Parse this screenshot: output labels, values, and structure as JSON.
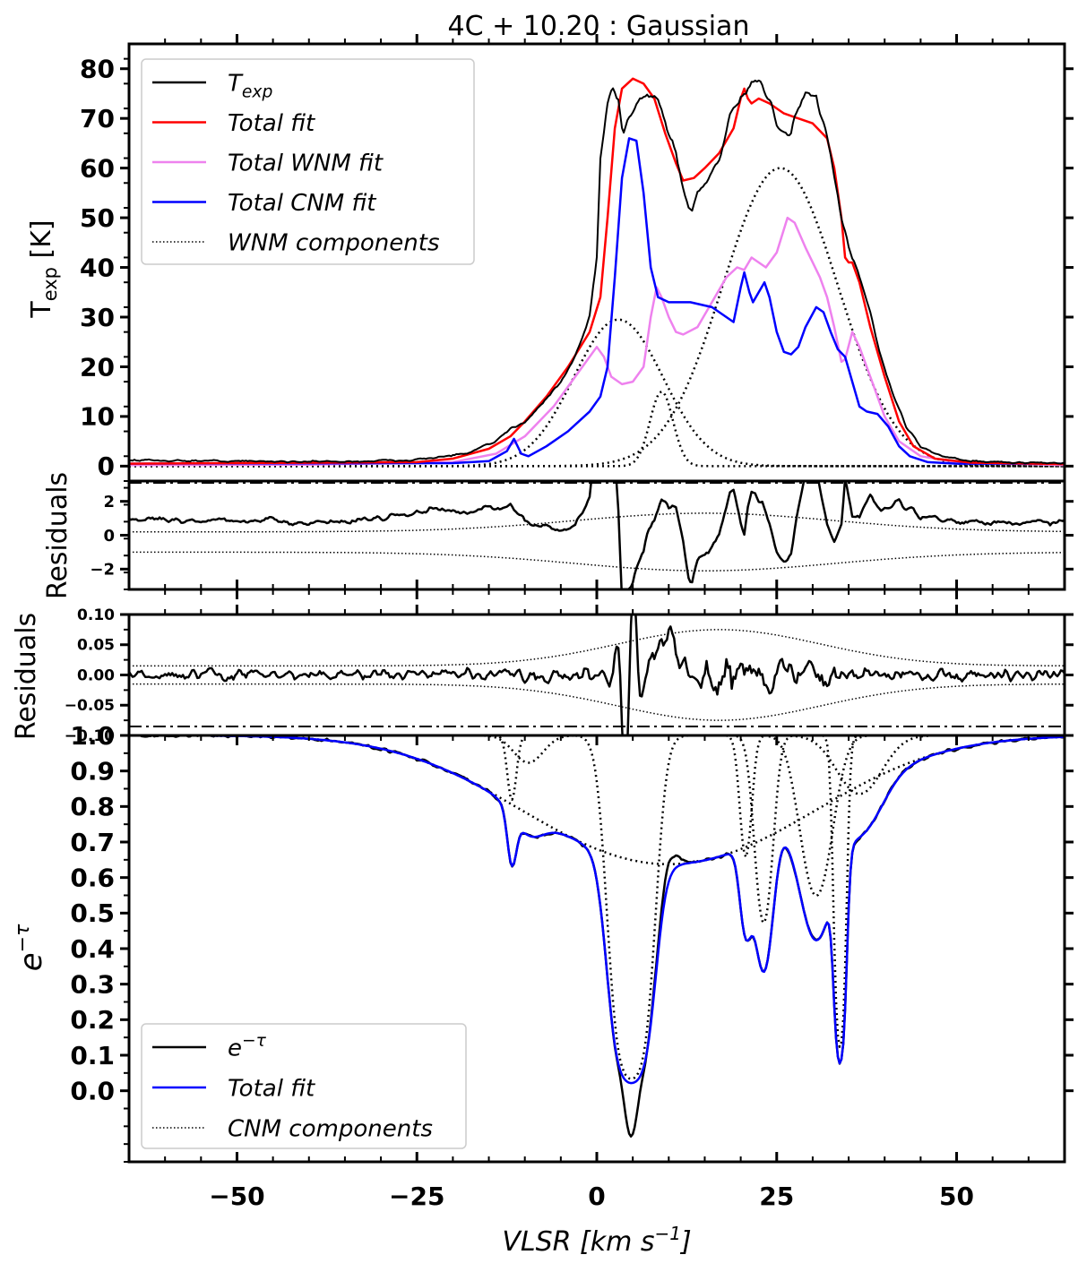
{
  "figure": {
    "title": "4C + 10.20 : Gaussian",
    "x_label": "VLSR [km s",
    "x_label_sup": "−1",
    "x_label_end": "]"
  },
  "chart_data": [
    {
      "name": "emission",
      "type": "line",
      "ylabel": "T",
      "ylabel_sub": "exp",
      "ylabel_unit": " [K]",
      "xlim": [
        -65,
        65
      ],
      "ylim": [
        -3,
        85
      ],
      "x_ticks": [
        -50,
        -25,
        0,
        25,
        50
      ],
      "y_ticks": [
        0,
        10,
        20,
        30,
        40,
        50,
        60,
        70,
        80
      ],
      "legend": {
        "position": "top-left",
        "entries": [
          {
            "label": "T",
            "sub": "exp",
            "color": "#000000",
            "style": "solid"
          },
          {
            "label": "Total fit",
            "color": "#ff0000",
            "style": "solid"
          },
          {
            "label": "Total WNM fit",
            "color": "#ee82ee",
            "style": "solid"
          },
          {
            "label": "Total CNM fit",
            "color": "#0000ff",
            "style": "solid"
          },
          {
            "label": "WNM components",
            "color": "#000000",
            "style": "dotted"
          }
        ]
      },
      "wnm_components": [
        {
          "amp": 29.5,
          "center": 3.0,
          "sigma": 6.2
        },
        {
          "amp": 15.0,
          "center": 9.0,
          "sigma": 1.6
        },
        {
          "amp": 60.0,
          "center": 25.5,
          "sigma": 8.0
        }
      ],
      "total_wnm_fit_points": [
        [
          -65,
          0.2
        ],
        [
          -40,
          0.3
        ],
        [
          -20,
          0.8
        ],
        [
          -14,
          2.5
        ],
        [
          -10,
          6
        ],
        [
          -6,
          12
        ],
        [
          -2,
          20
        ],
        [
          0,
          24
        ],
        [
          1,
          22
        ],
        [
          2,
          18
        ],
        [
          3.5,
          16.5
        ],
        [
          5,
          17
        ],
        [
          6.5,
          20
        ],
        [
          7.5,
          30
        ],
        [
          8.3,
          36
        ],
        [
          9,
          34
        ],
        [
          10,
          30
        ],
        [
          11,
          27
        ],
        [
          12,
          26.5
        ],
        [
          14,
          28
        ],
        [
          16,
          33
        ],
        [
          18,
          38
        ],
        [
          19.5,
          40
        ],
        [
          20.5,
          39.5
        ],
        [
          21.5,
          42
        ],
        [
          22.5,
          41
        ],
        [
          23.5,
          40
        ],
        [
          25,
          43
        ],
        [
          26.5,
          50
        ],
        [
          27.5,
          49
        ],
        [
          29,
          44
        ],
        [
          31,
          38
        ],
        [
          32,
          34
        ],
        [
          33,
          28
        ],
        [
          34,
          21
        ],
        [
          34.5,
          21.5
        ],
        [
          35.5,
          27
        ],
        [
          36.5,
          24
        ],
        [
          38,
          18
        ],
        [
          40,
          10
        ],
        [
          42,
          5
        ],
        [
          45,
          2
        ],
        [
          50,
          0.8
        ],
        [
          65,
          0.2
        ]
      ],
      "total_cnm_fit_points": [
        [
          -65,
          0.5
        ],
        [
          -20,
          0.6
        ],
        [
          -15,
          1
        ],
        [
          -12.5,
          3
        ],
        [
          -11.5,
          5.5
        ],
        [
          -10.5,
          2.5
        ],
        [
          -9.5,
          2
        ],
        [
          -7,
          4
        ],
        [
          -4,
          7
        ],
        [
          -1,
          11
        ],
        [
          0.5,
          14
        ],
        [
          1.5,
          20
        ],
        [
          2.5,
          38
        ],
        [
          3.5,
          58
        ],
        [
          4.5,
          66
        ],
        [
          5.5,
          65.5
        ],
        [
          6.5,
          55
        ],
        [
          7.5,
          40
        ],
        [
          8.5,
          34
        ],
        [
          10,
          33
        ],
        [
          13,
          33
        ],
        [
          16,
          32
        ],
        [
          18,
          30
        ],
        [
          19,
          29
        ],
        [
          20,
          36
        ],
        [
          20.5,
          39
        ],
        [
          21.2,
          35
        ],
        [
          21.7,
          33
        ],
        [
          22.5,
          35
        ],
        [
          23.3,
          37
        ],
        [
          24,
          34
        ],
        [
          25,
          27
        ],
        [
          26,
          23
        ],
        [
          27,
          22.5
        ],
        [
          28,
          24
        ],
        [
          29,
          28
        ],
        [
          30.5,
          32
        ],
        [
          31.5,
          31
        ],
        [
          32.5,
          27
        ],
        [
          33.5,
          23.5
        ],
        [
          34.5,
          22
        ],
        [
          35.5,
          17
        ],
        [
          36.5,
          12
        ],
        [
          37.5,
          11
        ],
        [
          39,
          10.5
        ],
        [
          40.5,
          8
        ],
        [
          42,
          4
        ],
        [
          43.5,
          2
        ],
        [
          46,
          0.8
        ],
        [
          50,
          0.5
        ],
        [
          65,
          0.5
        ]
      ],
      "total_fit_points": [
        [
          -65,
          0.5
        ],
        [
          -25,
          0.8
        ],
        [
          -20,
          1.5
        ],
        [
          -15,
          3.5
        ],
        [
          -12,
          6
        ],
        [
          -10,
          9
        ],
        [
          -7,
          14
        ],
        [
          -4,
          20
        ],
        [
          -1,
          27
        ],
        [
          0.5,
          34
        ],
        [
          1.5,
          50
        ],
        [
          2.5,
          68
        ],
        [
          3.5,
          76
        ],
        [
          5,
          78
        ],
        [
          6.5,
          77
        ],
        [
          8,
          74
        ],
        [
          9.5,
          67
        ],
        [
          11,
          61
        ],
        [
          12,
          57.5
        ],
        [
          13.5,
          58
        ],
        [
          15,
          60
        ],
        [
          17,
          63
        ],
        [
          19,
          68
        ],
        [
          20,
          74
        ],
        [
          20.5,
          76
        ],
        [
          21,
          74
        ],
        [
          21.5,
          73
        ],
        [
          22.5,
          74
        ],
        [
          24,
          73
        ],
        [
          26,
          71
        ],
        [
          28,
          70
        ],
        [
          30,
          69
        ],
        [
          32,
          66
        ],
        [
          33,
          60
        ],
        [
          34,
          50
        ],
        [
          34.5,
          42
        ],
        [
          35,
          41
        ],
        [
          35.5,
          41
        ],
        [
          36.5,
          37
        ],
        [
          38,
          28
        ],
        [
          40,
          18
        ],
        [
          42,
          9
        ],
        [
          44,
          4
        ],
        [
          47,
          1.5
        ],
        [
          52,
          0.7
        ],
        [
          65,
          0.4
        ]
      ],
      "observed_points": [
        [
          -65,
          1.2
        ],
        [
          -50,
          1.0
        ],
        [
          -35,
          0.9
        ],
        [
          -25,
          1.3
        ],
        [
          -18,
          2.5
        ],
        [
          -14,
          5
        ],
        [
          -12,
          7.5
        ],
        [
          -10,
          9
        ],
        [
          -8,
          12
        ],
        [
          -5,
          17
        ],
        [
          -3,
          22
        ],
        [
          -1,
          30
        ],
        [
          0,
          42
        ],
        [
          0.5,
          62
        ],
        [
          1.5,
          73
        ],
        [
          2.2,
          76
        ],
        [
          3,
          73.5
        ],
        [
          3.6,
          67
        ],
        [
          4.3,
          70
        ],
        [
          5.5,
          73
        ],
        [
          7,
          75
        ],
        [
          8,
          74.5
        ],
        [
          9,
          72
        ],
        [
          10,
          67
        ],
        [
          11,
          63
        ],
        [
          12,
          56
        ],
        [
          12.7,
          52
        ],
        [
          13.2,
          51.5
        ],
        [
          14,
          55
        ],
        [
          15.5,
          58
        ],
        [
          17,
          62
        ],
        [
          18.5,
          70
        ],
        [
          20,
          74
        ],
        [
          21,
          76
        ],
        [
          22,
          77
        ],
        [
          23,
          76.5
        ],
        [
          24,
          73
        ],
        [
          25,
          69
        ],
        [
          26,
          67
        ],
        [
          27,
          67.5
        ],
        [
          28,
          72
        ],
        [
          29,
          75
        ],
        [
          30.5,
          74
        ],
        [
          32,
          66
        ],
        [
          33,
          58
        ],
        [
          34,
          50
        ],
        [
          35,
          44
        ],
        [
          36.5,
          38
        ],
        [
          38,
          31
        ],
        [
          39.5,
          22
        ],
        [
          41,
          15
        ],
        [
          43,
          8
        ],
        [
          45,
          4
        ],
        [
          48,
          2
        ],
        [
          52,
          1
        ],
        [
          58,
          0.7
        ],
        [
          65,
          0.6
        ]
      ]
    },
    {
      "name": "emission_residuals",
      "type": "line",
      "ylabel": "Residuals",
      "ylim": [
        -3.2,
        3.2
      ],
      "y_ticks": [
        -2,
        0,
        2
      ]
    },
    {
      "name": "absorption_residuals",
      "type": "line",
      "ylabel": "Residuals",
      "ylim": [
        -0.1,
        0.1
      ],
      "y_ticks": [
        -0.1,
        -0.05,
        0.0,
        0.05,
        0.1
      ],
      "y_tick_labels": [
        "−0.10",
        "−0.05",
        "0.00",
        "0.05",
        "0.10"
      ]
    },
    {
      "name": "absorption",
      "type": "line",
      "ylabel": "e",
      "ylabel_sup": "−τ",
      "ylim": [
        -0.2,
        1.0
      ],
      "y_ticks": [
        0.0,
        0.1,
        0.2,
        0.3,
        0.4,
        0.5,
        0.6,
        0.7,
        0.8,
        0.9,
        1.0
      ],
      "legend": {
        "position": "bottom-left",
        "entries": [
          {
            "label": "e",
            "sup": "−τ",
            "color": "#000000",
            "style": "solid"
          },
          {
            "label": "Total fit",
            "color": "#0000ff",
            "style": "solid"
          },
          {
            "label": "CNM components",
            "color": "#000000",
            "style": "dotted"
          }
        ]
      },
      "cnm_components": [
        {
          "tau": 0.2,
          "center": -11.8,
          "sigma": 0.6
        },
        {
          "tau": 0.08,
          "center": -9.5,
          "sigma": 2.0
        },
        {
          "tau": 0.45,
          "center": 10.0,
          "sigma": 18.0
        },
        {
          "tau": 3.4,
          "center": 4.8,
          "sigma": 1.9
        },
        {
          "tau": 0.42,
          "center": 20.7,
          "sigma": 0.75
        },
        {
          "tau": 0.75,
          "center": 23.2,
          "sigma": 1.1
        },
        {
          "tau": 0.6,
          "center": 30.5,
          "sigma": 2.0
        },
        {
          "tau": 2.1,
          "center": 33.8,
          "sigma": 0.6
        },
        {
          "tau": 0.18,
          "center": 36.5,
          "sigma": 3.0
        }
      ]
    }
  ]
}
